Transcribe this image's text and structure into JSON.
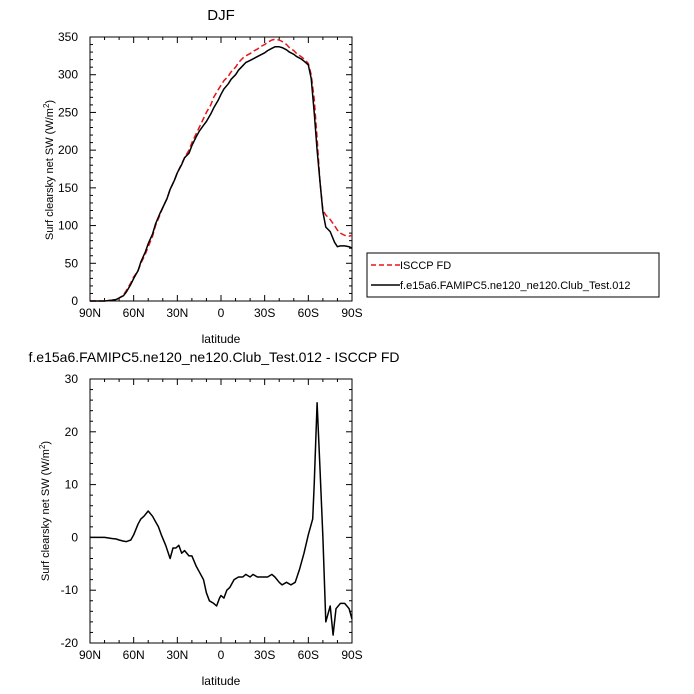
{
  "chart_data": [
    {
      "type": "line",
      "title": "DJF",
      "xlabel": "latitude",
      "ylabel": "Surf clearsky net SW (W/m",
      "ylabel_sup": "2",
      "ylabel_close": ")",
      "xlim": [
        90,
        -90
      ],
      "ylim": [
        0,
        350
      ],
      "x_ticks": [
        90,
        60,
        30,
        0,
        -30,
        -60,
        -90
      ],
      "x_tick_labels": [
        "90N",
        "60N",
        "30N",
        "0",
        "30S",
        "60S",
        "90S"
      ],
      "y_ticks": [
        0,
        50,
        100,
        150,
        200,
        250,
        300,
        350
      ],
      "y_tick_labels": [
        "0",
        "50",
        "100",
        "150",
        "200",
        "250",
        "300",
        "350"
      ],
      "legend_position": "right",
      "series": [
        {
          "name": "ISCCP FD",
          "color": "#e8141a",
          "dash": "dashed",
          "x": [
            90,
            85,
            80,
            75,
            72,
            70,
            67,
            65,
            62,
            60,
            57,
            55,
            52,
            50,
            47,
            45,
            42,
            40,
            37,
            35,
            32,
            30,
            27,
            25,
            22,
            20,
            17,
            15,
            12,
            10,
            7,
            5,
            2,
            0,
            -2,
            -5,
            -7,
            -10,
            -12,
            -15,
            -17,
            -20,
            -22,
            -25,
            -27,
            -30,
            -32,
            -35,
            -37,
            -40,
            -42,
            -45,
            -47,
            -50,
            -52,
            -55,
            -57,
            -60,
            -62,
            -64,
            -66,
            -68,
            -70,
            -72,
            -75,
            -78,
            -80,
            -82,
            -85,
            -88,
            -90
          ],
          "y": [
            0,
            0,
            0,
            1,
            2,
            4,
            8,
            14,
            24,
            32,
            40,
            50,
            62,
            72,
            86,
            100,
            114,
            124,
            136,
            148,
            160,
            170,
            182,
            190,
            200,
            210,
            222,
            230,
            242,
            250,
            260,
            270,
            280,
            286,
            292,
            298,
            304,
            310,
            316,
            322,
            325,
            328,
            331,
            334,
            337,
            340,
            343,
            346,
            347,
            346,
            344,
            340,
            336,
            332,
            328,
            324,
            321,
            315,
            300,
            268,
            216,
            158,
            120,
            114,
            108,
            100,
            94,
            90,
            87,
            86,
            87
          ]
        },
        {
          "name": "f.e15a6.FAMIPC5.ne120_ne120.Club_Test.012",
          "color": "#000000",
          "dash": "solid",
          "x": [
            90,
            85,
            80,
            75,
            72,
            70,
            67,
            65,
            62,
            60,
            57,
            55,
            52,
            50,
            47,
            45,
            42,
            40,
            37,
            35,
            32,
            30,
            27,
            25,
            22,
            20,
            17,
            15,
            12,
            10,
            7,
            5,
            2,
            0,
            -2,
            -5,
            -7,
            -10,
            -12,
            -15,
            -17,
            -20,
            -22,
            -25,
            -27,
            -30,
            -32,
            -35,
            -37,
            -40,
            -42,
            -45,
            -47,
            -50,
            -52,
            -55,
            -57,
            -60,
            -62,
            -64,
            -66,
            -68,
            -70,
            -72,
            -75,
            -78,
            -80,
            -82,
            -85,
            -88,
            -90
          ],
          "y": [
            0,
            0,
            0,
            1,
            2,
            4,
            7,
            12,
            22,
            30,
            40,
            52,
            65,
            76,
            89,
            102,
            116,
            124,
            136,
            148,
            160,
            170,
            181,
            190,
            196,
            206,
            218,
            225,
            233,
            238,
            248,
            256,
            266,
            274,
            281,
            288,
            294,
            300,
            306,
            312,
            316,
            319,
            321,
            324,
            326,
            329,
            332,
            335,
            337,
            337,
            336,
            333,
            330,
            327,
            324,
            321,
            318,
            313,
            295,
            250,
            200,
            158,
            118,
            98,
            92,
            78,
            72,
            73,
            73,
            72,
            70
          ]
        }
      ]
    },
    {
      "type": "line",
      "title": "f.e15a6.FAMIPC5.ne120_ne120.Club_Test.012 - ISCCP FD",
      "xlabel": "latitude",
      "ylabel": "Surf clearsky net SW (W/m",
      "ylabel_sup": "2",
      "ylabel_close": ")",
      "xlim": [
        90,
        -90
      ],
      "ylim": [
        -20,
        30
      ],
      "x_ticks": [
        90,
        60,
        30,
        0,
        -30,
        -60,
        -90
      ],
      "x_tick_labels": [
        "90N",
        "60N",
        "30N",
        "0",
        "30S",
        "60S",
        "90S"
      ],
      "y_ticks": [
        -20,
        -10,
        0,
        10,
        20,
        30
      ],
      "y_tick_labels": [
        "-20",
        "-10",
        "0",
        "10",
        "20",
        "30"
      ],
      "series": [
        {
          "color": "#000000",
          "dash": "solid",
          "x": [
            90,
            85,
            80,
            75,
            72,
            70,
            67,
            65,
            62,
            60,
            57,
            55,
            53,
            50,
            47,
            45,
            43,
            41,
            38,
            35,
            33,
            31,
            29,
            27,
            25,
            22,
            20,
            17,
            15,
            12,
            10,
            8,
            5,
            3,
            1,
            0,
            -2,
            -4,
            -6,
            -9,
            -12,
            -15,
            -17,
            -20,
            -22,
            -25,
            -27,
            -30,
            -32,
            -35,
            -37,
            -40,
            -42,
            -45,
            -48,
            -51,
            -54,
            -57,
            -60,
            -63,
            -64,
            -66,
            -68,
            -70,
            -72,
            -75,
            -77,
            -79,
            -82,
            -85,
            -88,
            -90
          ],
          "y": [
            0,
            0,
            0,
            -0.2,
            -0.3,
            -0.5,
            -0.7,
            -0.8,
            -0.5,
            0.5,
            2.5,
            3.5,
            4,
            5,
            4,
            3,
            2,
            0.5,
            -1.5,
            -4,
            -2,
            -2,
            -1.5,
            -3,
            -2.5,
            -3.5,
            -3.5,
            -5.5,
            -6.5,
            -8,
            -10.5,
            -12,
            -12.5,
            -13,
            -11.5,
            -11,
            -11.5,
            -10,
            -9.5,
            -8,
            -7.5,
            -7.5,
            -7,
            -7.5,
            -7,
            -7.5,
            -7.5,
            -7.5,
            -7.5,
            -7,
            -7.5,
            -8.5,
            -9,
            -8.5,
            -9,
            -8.5,
            -6,
            -3,
            0.5,
            3.5,
            10,
            25.5,
            13,
            0,
            -16,
            -13,
            -18.5,
            -13.5,
            -12.5,
            -12.5,
            -13.5,
            -15.5
          ]
        }
      ]
    }
  ]
}
